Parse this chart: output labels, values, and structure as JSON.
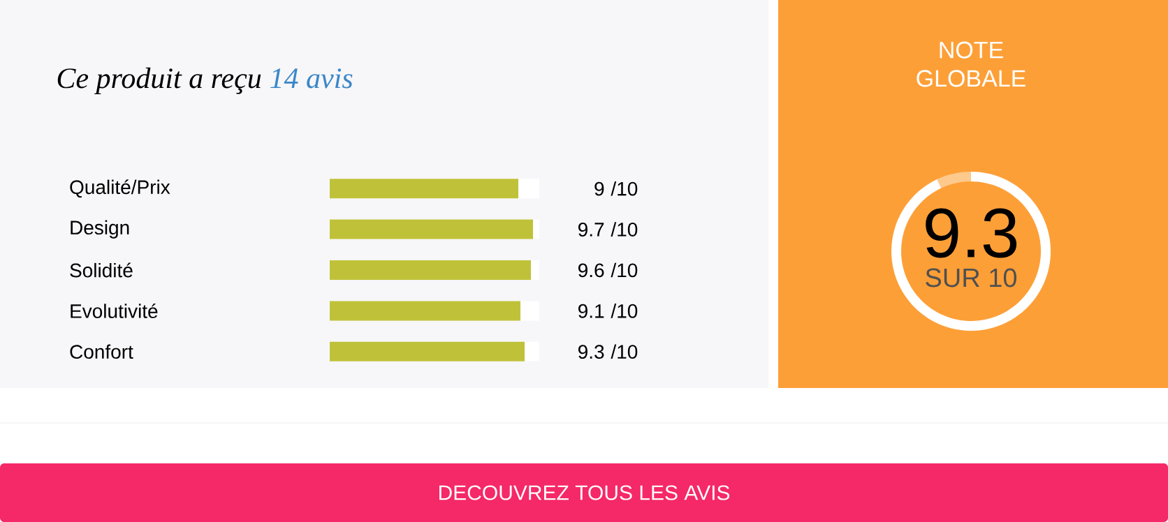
{
  "chart_data": [
    {
      "type": "bar",
      "orientation": "horizontal",
      "title": "Ce produit a reçu",
      "subtitle": "14 avis",
      "categories": [
        "Qualité/Prix",
        "Design",
        "Solidité",
        "Evolutivité",
        "Confort"
      ],
      "values": [
        9,
        9.7,
        9.6,
        9.1,
        9.3
      ],
      "color": "#bfc238",
      "xlim": [
        0,
        10
      ],
      "value_labels": [
        "9",
        "9.7",
        "9.6",
        "9.1",
        "9.3"
      ],
      "tick_labels": "y",
      "annotations": [
        "/10",
        "/10",
        "/10",
        "/10",
        "/10",
        "DECOUVREZ TOUS LES AVIS"
      ]
    },
    {
      "type": "donut",
      "title": "NOTE GLOBALE",
      "categories": [
        null,
        null
      ],
      "values": [
        93,
        7
      ],
      "colors": [
        "#ffffff",
        "#fdc98c"
      ],
      "annotations": [
        "9.3",
        "SUR 10"
      ]
    }
  ]
}
